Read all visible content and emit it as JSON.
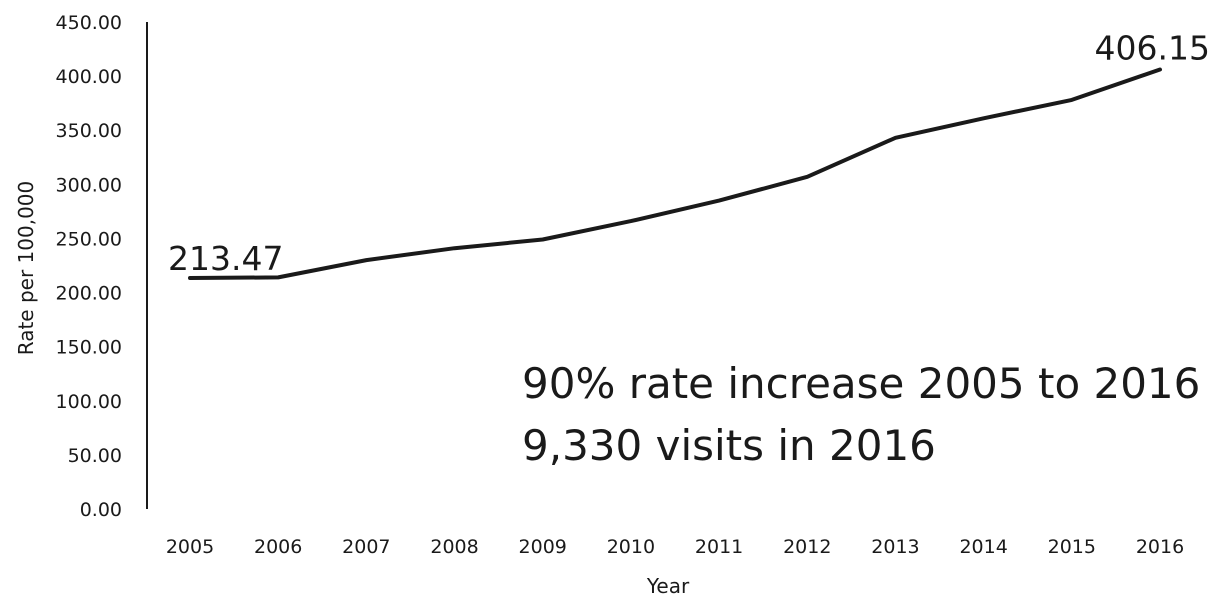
{
  "chart_data": {
    "type": "line",
    "title": "",
    "xlabel": "Year",
    "ylabel": "Rate per 100,000",
    "categories": [
      "2005",
      "2006",
      "2007",
      "2008",
      "2009",
      "2010",
      "2011",
      "2012",
      "2013",
      "2014",
      "2015",
      "2016"
    ],
    "series": [
      {
        "values": [
          213.47,
          214,
          230,
          241,
          249,
          266,
          285,
          307,
          343,
          361,
          378,
          406.15
        ],
        "color": "#1a1a1a"
      }
    ],
    "ylim": [
      0,
      450
    ],
    "yticks": [
      "0.00",
      "50.00",
      "100.00",
      "150.00",
      "200.00",
      "250.00",
      "300.00",
      "350.00",
      "400.00",
      "450.00"
    ],
    "data_labels": [
      {
        "index": 0,
        "text": "213.47"
      },
      {
        "index": 11,
        "text": "406.15"
      }
    ],
    "annotations": [
      "90% rate increase 2005 to 2016",
      "9,330 visits in 2016"
    ],
    "grid": false,
    "legend": "none"
  }
}
